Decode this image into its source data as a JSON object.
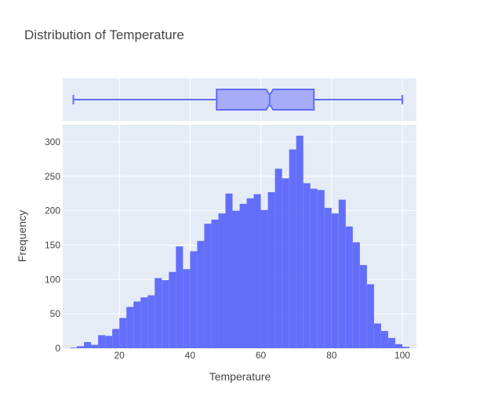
{
  "chart_data": {
    "type": "bar",
    "title": "Distribution of Temperature",
    "xlabel": "Temperature",
    "ylabel": "Frequency",
    "xlim": [
      4,
      104
    ],
    "ylim": [
      0,
      325
    ],
    "x_ticks": [
      20,
      40,
      60,
      80,
      100
    ],
    "y_ticks": [
      0,
      50,
      100,
      150,
      200,
      250,
      300
    ],
    "grid": true,
    "bin_width": 2,
    "bin_starts": [
      6,
      8,
      10,
      12,
      14,
      16,
      18,
      20,
      22,
      24,
      26,
      28,
      30,
      32,
      34,
      36,
      38,
      40,
      42,
      44,
      46,
      48,
      50,
      52,
      54,
      56,
      58,
      60,
      62,
      64,
      66,
      68,
      70,
      72,
      74,
      76,
      78,
      80,
      82,
      84,
      86,
      88,
      90,
      92,
      94,
      96,
      98,
      100
    ],
    "values": [
      1,
      3,
      9,
      5,
      19,
      18,
      28,
      44,
      60,
      68,
      74,
      77,
      102,
      99,
      111,
      148,
      115,
      141,
      156,
      181,
      187,
      196,
      225,
      200,
      210,
      218,
      224,
      201,
      227,
      261,
      247,
      289,
      309,
      240,
      232,
      230,
      204,
      196,
      216,
      177,
      154,
      121,
      93,
      36,
      25,
      15,
      6,
      2
    ],
    "box": {
      "min": 7,
      "q1": 47.5,
      "median": 62.5,
      "q3": 75,
      "max": 100,
      "notch_low": 61.5,
      "notch_high": 63.5
    },
    "colors": {
      "bar": "#636efa",
      "box_fill": "#a6acf7",
      "box_line": "#636efa",
      "plot_bg": "#e5ecf6",
      "grid": "#ffffff"
    }
  }
}
